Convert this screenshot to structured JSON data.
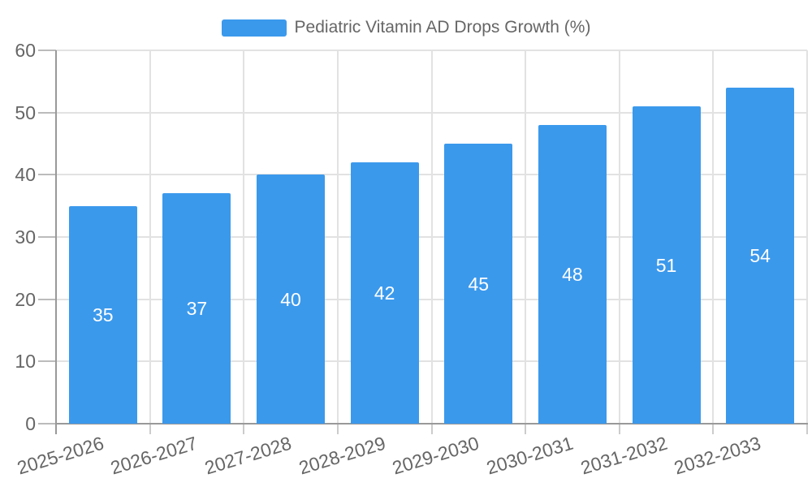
{
  "chart_data": {
    "type": "bar",
    "title": "Pediatric Vitamin AD Drops Growth (%)",
    "legend_entries": [
      "Pediatric Vitamin AD Drops Growth (%)"
    ],
    "legend_position": "top-center",
    "categories": [
      "2025-2026",
      "2026-2027",
      "2027-2028",
      "2028-2029",
      "2029-2030",
      "2030-2031",
      "2031-2032",
      "2032-2033"
    ],
    "values": [
      35,
      37,
      40,
      42,
      45,
      48,
      51,
      54
    ],
    "xlabel": "",
    "ylabel": "",
    "ylim": [
      0,
      60
    ],
    "y_ticks": [
      0,
      10,
      20,
      30,
      40,
      50,
      60
    ],
    "grid": true,
    "value_labels": "inside-center",
    "x_label_rotation_deg": -17
  },
  "colors": {
    "bar": "#3B99EC",
    "axis_line": "#999999",
    "grid_line": "#E2E2E2",
    "y_tick_line": "#BBBBBB",
    "x_tick_line": "#CCCCCC",
    "axis_text": "#666666",
    "legend_text": "#666666",
    "value_label_text": "#FFFFFF",
    "background": "#FFFFFF"
  }
}
